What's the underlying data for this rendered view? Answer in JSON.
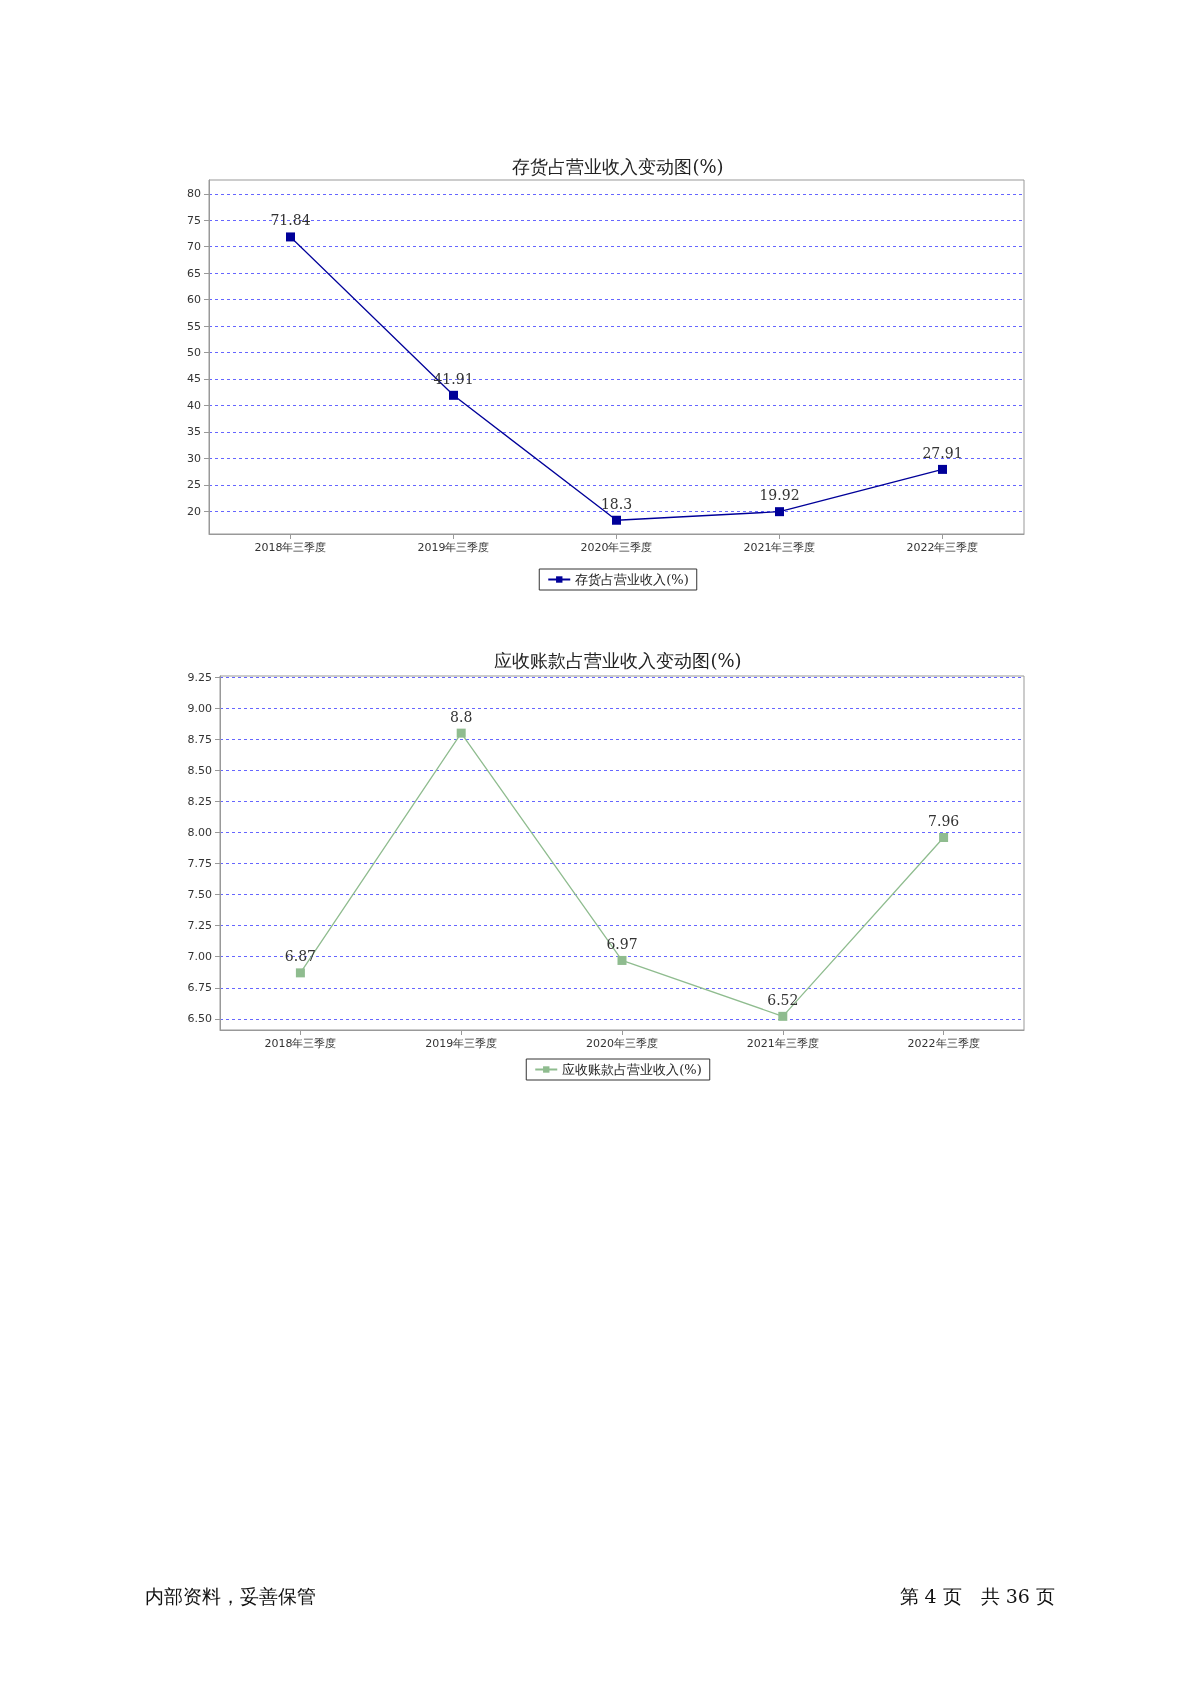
{
  "chart_data": [
    {
      "type": "line",
      "title": "存货占营业收入变动图(%)",
      "categories": [
        "2018年三季度",
        "2019年三季度",
        "2020年三季度",
        "2021年三季度",
        "2022年三季度"
      ],
      "series": [
        {
          "name": "存货占营业收入(%)",
          "color": "#000099",
          "values": [
            71.84,
            41.91,
            18.3,
            19.92,
            27.91
          ]
        }
      ],
      "ylim": [
        15.7,
        82.6
      ],
      "yticks": [
        20,
        25,
        30,
        35,
        40,
        45,
        50,
        55,
        60,
        65,
        70,
        75,
        80
      ],
      "grid": "y",
      "legend": "bottom",
      "marker": "square",
      "line_style": "solid",
      "data_labels": true
    },
    {
      "type": "line",
      "title": "应收账款占营业收入变动图(%)",
      "categories": [
        "2018年三季度",
        "2019年三季度",
        "2020年三季度",
        "2021年三季度",
        "2022年三季度"
      ],
      "series": [
        {
          "name": "应收账款占营业收入(%)",
          "color": "#8fbc8f",
          "values": [
            6.87,
            8.8,
            6.97,
            6.52,
            7.96
          ]
        }
      ],
      "ylim": [
        6.41,
        9.26
      ],
      "yticks": [
        {
          "value": 6.5,
          "label": "6.50"
        },
        {
          "value": 6.75,
          "label": "6.75"
        },
        {
          "value": 7,
          "label": "7.00"
        },
        {
          "value": 7.25,
          "label": "7.25"
        },
        {
          "value": 7.5,
          "label": "7.50"
        },
        {
          "value": 7.75,
          "label": "7.75"
        },
        {
          "value": 8,
          "label": "8.00"
        },
        {
          "value": 8.25,
          "label": "8.25"
        },
        {
          "value": 8.5,
          "label": "8.50"
        },
        {
          "value": 8.75,
          "label": "8.75"
        },
        {
          "value": 9,
          "label": "9.00"
        },
        {
          "value": 9.25,
          "label": "9.25"
        }
      ],
      "grid": "y",
      "legend": "bottom",
      "marker": "square",
      "line_style": "solid",
      "data_labels": true,
      "annotations": [
        "内部资料，妥善保管",
        "第 4 页　共 36 页"
      ]
    }
  ]
}
